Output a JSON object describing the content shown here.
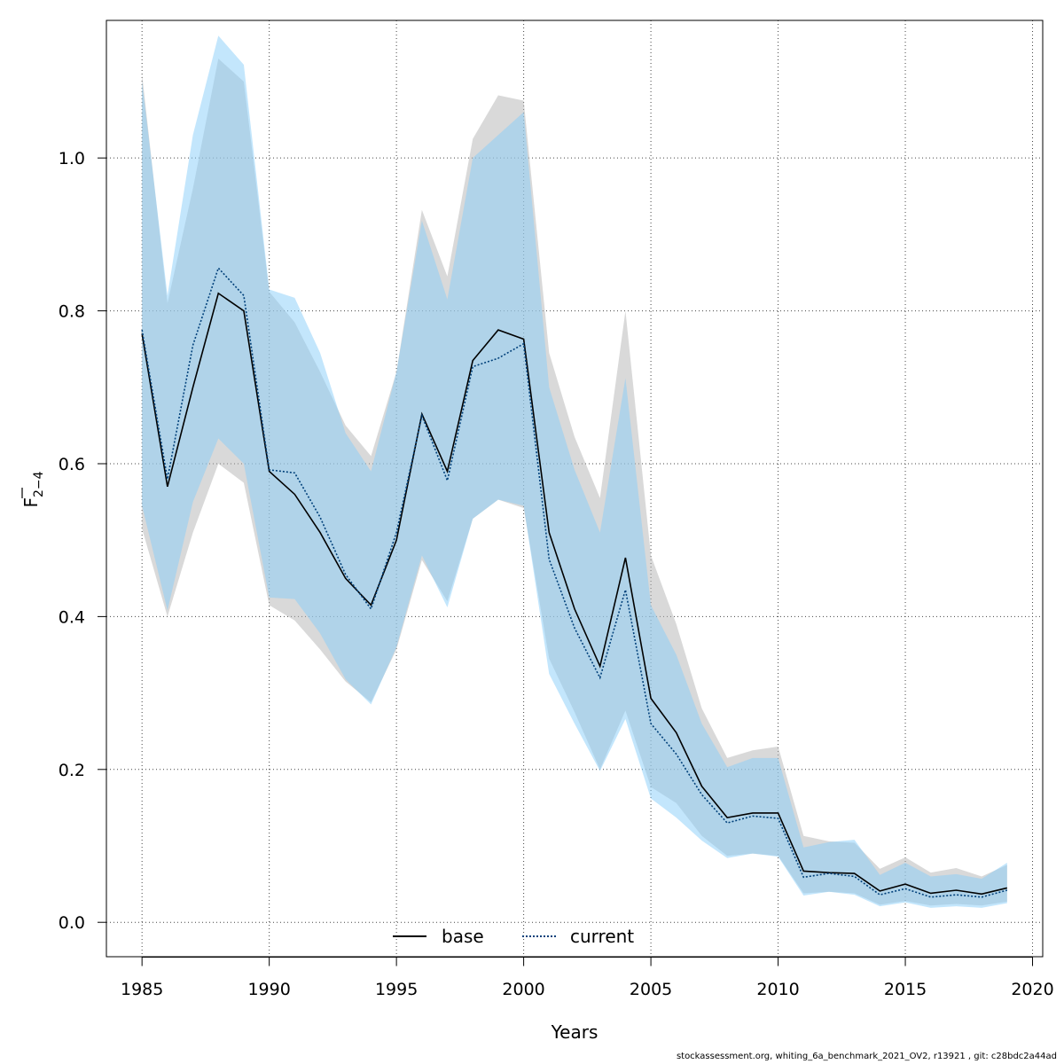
{
  "chart_data": {
    "type": "line",
    "xlabel": "Years",
    "ylabel": {
      "base": "F",
      "sub": "2−4"
    },
    "xlim": [
      1983.6,
      2020.4
    ],
    "ylim": [
      -0.045,
      1.18
    ],
    "xticks": [
      1985,
      1990,
      1995,
      2000,
      2005,
      2010,
      2015,
      2020
    ],
    "yticks": [
      0.0,
      0.2,
      0.4,
      0.6,
      0.8,
      1.0
    ],
    "ytick_labels": [
      "0.0",
      "0.2",
      "0.4",
      "0.6",
      "0.8",
      "1.0"
    ],
    "grid": true,
    "legend_position": "bottom-center",
    "x": [
      1985,
      1986,
      1987,
      1988,
      1989,
      1990,
      1991,
      1992,
      1993,
      1994,
      1995,
      1996,
      1997,
      1998,
      1999,
      2000,
      2001,
      2002,
      2003,
      2004,
      2005,
      2006,
      2007,
      2008,
      2009,
      2010,
      2011,
      2012,
      2013,
      2014,
      2015,
      2016,
      2017,
      2018,
      2019
    ],
    "series": [
      {
        "name": "base",
        "color": "#000000",
        "band_color": "#b3b3b3",
        "line_style": "solid",
        "values": [
          0.77,
          0.57,
          0.7,
          0.823,
          0.8,
          0.59,
          0.56,
          0.51,
          0.45,
          0.415,
          0.5,
          0.665,
          0.59,
          0.735,
          0.775,
          0.763,
          0.51,
          0.41,
          0.335,
          0.477,
          0.293,
          0.248,
          0.178,
          0.137,
          0.143,
          0.143,
          0.067,
          0.065,
          0.064,
          0.041,
          0.05,
          0.038,
          0.042,
          0.037,
          0.045
        ],
        "lower": [
          0.515,
          0.4,
          0.51,
          0.6,
          0.575,
          0.415,
          0.395,
          0.357,
          0.315,
          0.288,
          0.357,
          0.474,
          0.42,
          0.528,
          0.553,
          0.542,
          0.345,
          0.275,
          0.2,
          0.277,
          0.177,
          0.156,
          0.113,
          0.087,
          0.09,
          0.087,
          0.038,
          0.04,
          0.038,
          0.023,
          0.028,
          0.022,
          0.024,
          0.022,
          0.027
        ],
        "upper": [
          1.11,
          0.81,
          0.96,
          1.13,
          1.1,
          0.825,
          0.785,
          0.72,
          0.65,
          0.61,
          0.72,
          0.932,
          0.845,
          1.025,
          1.082,
          1.075,
          0.745,
          0.635,
          0.555,
          0.8,
          0.48,
          0.39,
          0.28,
          0.215,
          0.225,
          0.23,
          0.113,
          0.106,
          0.104,
          0.07,
          0.085,
          0.065,
          0.071,
          0.06,
          0.075
        ]
      },
      {
        "name": "current",
        "color": "#00407a",
        "band_color": "#87cefa",
        "line_style": "dotted",
        "values": [
          0.775,
          0.58,
          0.755,
          0.856,
          0.82,
          0.592,
          0.588,
          0.53,
          0.455,
          0.41,
          0.51,
          0.663,
          0.578,
          0.727,
          0.738,
          0.757,
          0.475,
          0.385,
          0.32,
          0.435,
          0.26,
          0.22,
          0.167,
          0.13,
          0.139,
          0.136,
          0.059,
          0.064,
          0.06,
          0.036,
          0.044,
          0.033,
          0.036,
          0.033,
          0.042
        ],
        "lower": [
          0.545,
          0.408,
          0.55,
          0.633,
          0.6,
          0.425,
          0.423,
          0.378,
          0.318,
          0.285,
          0.36,
          0.48,
          0.412,
          0.528,
          0.553,
          0.545,
          0.325,
          0.26,
          0.198,
          0.266,
          0.162,
          0.137,
          0.107,
          0.084,
          0.09,
          0.086,
          0.035,
          0.04,
          0.036,
          0.021,
          0.026,
          0.019,
          0.021,
          0.019,
          0.025
        ],
        "upper": [
          1.1,
          0.82,
          1.03,
          1.16,
          1.122,
          0.828,
          0.817,
          0.745,
          0.64,
          0.59,
          0.72,
          0.918,
          0.815,
          1.0,
          1.03,
          1.06,
          0.7,
          0.592,
          0.51,
          0.712,
          0.415,
          0.35,
          0.26,
          0.203,
          0.215,
          0.215,
          0.098,
          0.105,
          0.108,
          0.062,
          0.078,
          0.06,
          0.063,
          0.057,
          0.078
        ]
      }
    ]
  },
  "legend": {
    "items": [
      {
        "label": "base",
        "color": "#000000",
        "style": "solid"
      },
      {
        "label": "current",
        "color": "#00407a",
        "style": "dotted"
      }
    ]
  },
  "footer": {
    "text": "stockassessment.org, whiting_6a_benchmark_2021_OV2, r13921 , git: c28bdc2a44ad"
  }
}
